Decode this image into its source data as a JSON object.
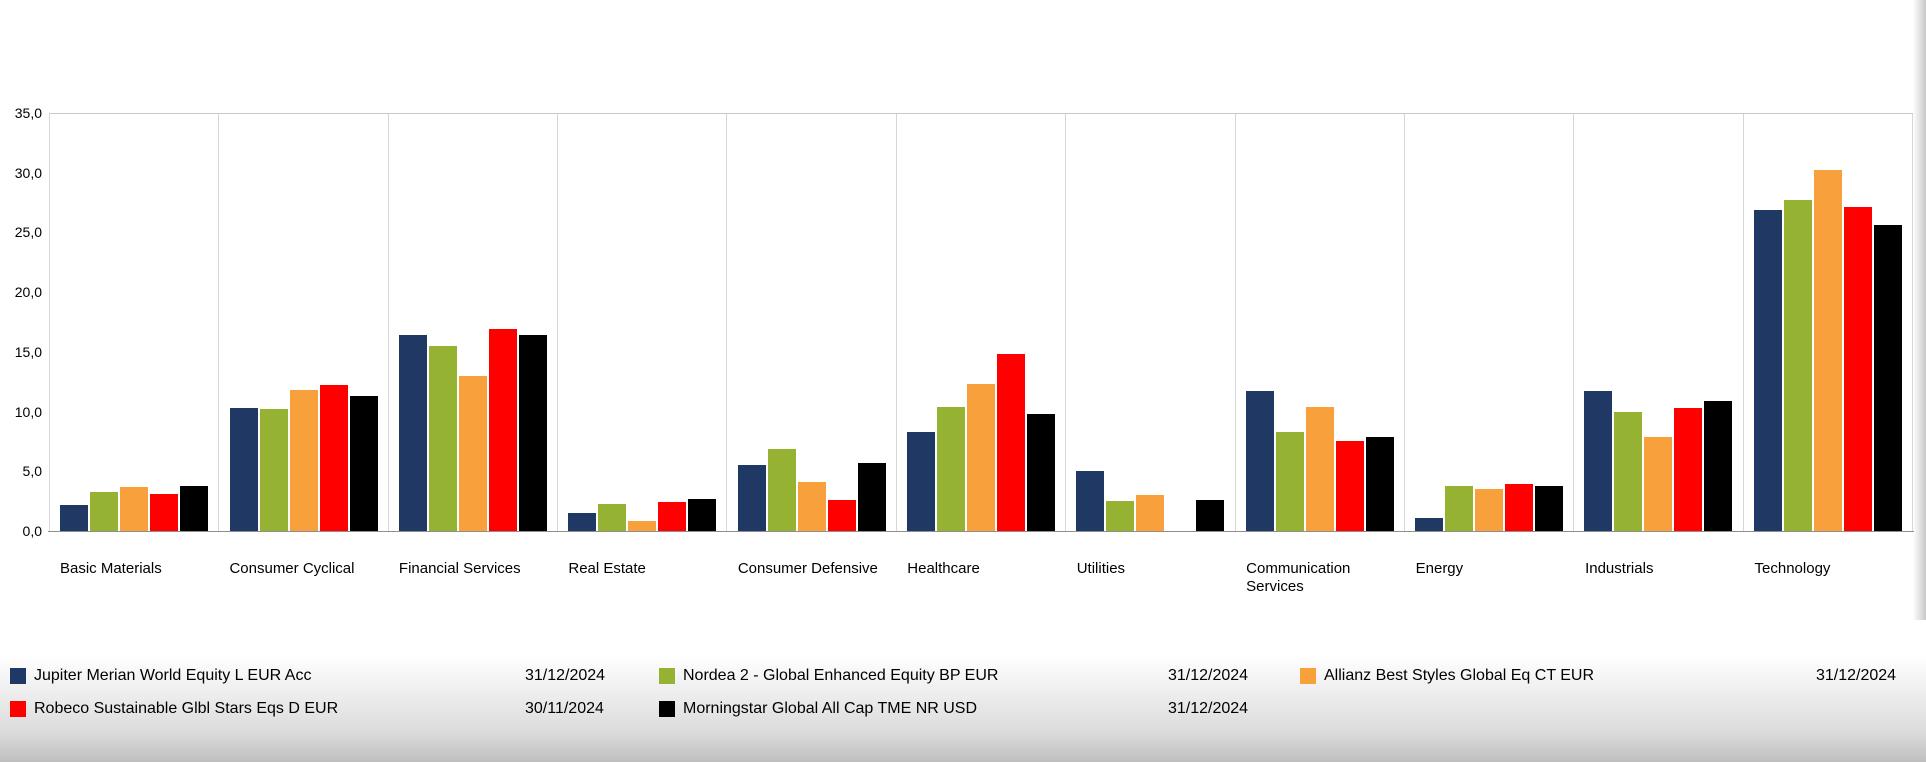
{
  "chart_data": {
    "type": "bar",
    "title": "",
    "xlabel": "",
    "ylabel": "",
    "ylim": [
      0,
      35
    ],
    "grid": "vertical-category-separators",
    "legend_position": "bottom",
    "y_ticks": [
      "0,0",
      "5,0",
      "10,0",
      "15,0",
      "20,0",
      "25,0",
      "30,0",
      "35,0"
    ],
    "categories": [
      "Basic Materials",
      "Consumer Cyclical",
      "Financial Services",
      "Real Estate",
      "Consumer Defensive",
      "Healthcare",
      "Utilities",
      "Communication Services",
      "Energy",
      "Industrials",
      "Technology"
    ],
    "series": [
      {
        "id": "jupiter",
        "name": "Jupiter Merian World Equity L EUR Acc",
        "date": "31/12/2024",
        "color": "#1F3864",
        "values": [
          2.2,
          10.3,
          16.4,
          1.5,
          5.5,
          8.3,
          5.0,
          11.7,
          1.1,
          11.7,
          26.9
        ]
      },
      {
        "id": "nordea",
        "name": "Nordea 2 - Global Enhanced Equity BP EUR",
        "date": "31/12/2024",
        "color": "#95B233",
        "values": [
          3.3,
          10.2,
          15.5,
          2.3,
          6.9,
          10.4,
          2.5,
          8.3,
          3.8,
          10.0,
          27.7
        ]
      },
      {
        "id": "allianz",
        "name": "Allianz Best Styles Global Eq CT EUR",
        "date": "31/12/2024",
        "color": "#F7A03C",
        "values": [
          3.7,
          11.8,
          13.0,
          0.8,
          4.1,
          12.3,
          3.0,
          10.4,
          3.5,
          7.9,
          30.2
        ]
      },
      {
        "id": "robeco",
        "name": "Robeco Sustainable Glbl Stars Eqs D EUR",
        "date": "30/11/2024",
        "color": "#FF0000",
        "values": [
          3.1,
          12.2,
          16.9,
          2.4,
          2.6,
          14.8,
          0,
          7.5,
          3.9,
          10.3,
          27.1
        ]
      },
      {
        "id": "morningstar",
        "name": "Morningstar Global All Cap TME NR USD",
        "date": "31/12/2024",
        "color": "#000000",
        "values": [
          3.8,
          11.3,
          16.4,
          2.7,
          5.7,
          9.8,
          2.6,
          7.9,
          3.8,
          10.9,
          25.6
        ]
      }
    ]
  }
}
